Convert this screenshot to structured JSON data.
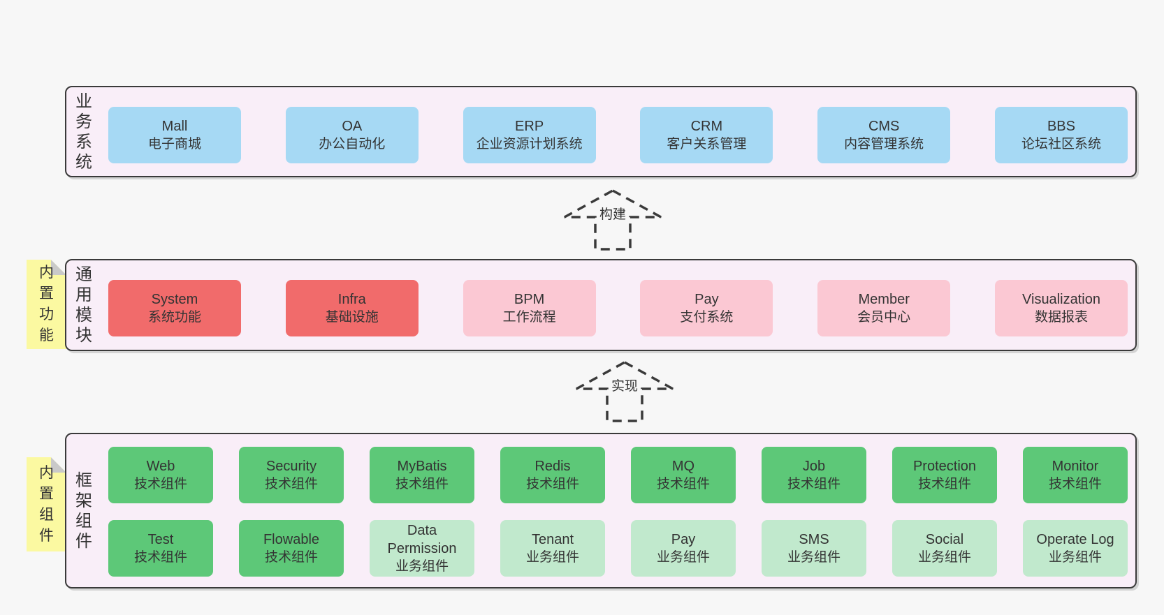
{
  "palette": {
    "page_bg": "#f7f7f7",
    "panel_bg": "#f9eef8",
    "panel_border": "#3a3a3a",
    "text": "#333333",
    "note_bg": "#fbf9a1",
    "note_fold": "#c9c9c9",
    "blue": "#a6d9f4",
    "red": "#f16b6b",
    "pink": "#fbc8d3",
    "green": "#5dc878",
    "lightgreen": "#c1e9cd"
  },
  "arrows": [
    {
      "label": "构建"
    },
    {
      "label": "实现"
    }
  ],
  "sections": {
    "business": {
      "label": "业务系统",
      "boxes": [
        {
          "en": "Mall",
          "zh": "电子商城",
          "type": "blue"
        },
        {
          "en": "OA",
          "zh": "办公自动化",
          "type": "blue"
        },
        {
          "en": "ERP",
          "zh": "企业资源计划系统",
          "type": "blue"
        },
        {
          "en": "CRM",
          "zh": "客户关系管理",
          "type": "blue"
        },
        {
          "en": "CMS",
          "zh": "内容管理系统",
          "type": "blue"
        },
        {
          "en": "BBS",
          "zh": "论坛社区系统",
          "type": "blue"
        }
      ]
    },
    "modules": {
      "tag": "内置功能",
      "label": "通用模块",
      "boxes": [
        {
          "en": "System",
          "zh": "系统功能",
          "type": "red"
        },
        {
          "en": "Infra",
          "zh": "基础设施",
          "type": "red"
        },
        {
          "en": "BPM",
          "zh": "工作流程",
          "type": "pink"
        },
        {
          "en": "Pay",
          "zh": "支付系统",
          "type": "pink"
        },
        {
          "en": "Member",
          "zh": "会员中心",
          "type": "pink"
        },
        {
          "en": "Visualization",
          "zh": "数据报表",
          "type": "pink"
        }
      ]
    },
    "framework": {
      "tag": "内置组件",
      "label": "框架组件",
      "row1": [
        {
          "en": "Web",
          "zh": "技术组件",
          "type": "green"
        },
        {
          "en": "Security",
          "zh": "技术组件",
          "type": "green"
        },
        {
          "en": "MyBatis",
          "zh": "技术组件",
          "type": "green"
        },
        {
          "en": "Redis",
          "zh": "技术组件",
          "type": "green"
        },
        {
          "en": "MQ",
          "zh": "技术组件",
          "type": "green"
        },
        {
          "en": "Job",
          "zh": "技术组件",
          "type": "green"
        },
        {
          "en": "Protection",
          "zh": "技术组件",
          "type": "green"
        },
        {
          "en": "Monitor",
          "zh": "技术组件",
          "type": "green"
        }
      ],
      "row2": [
        {
          "en": "Test",
          "zh": "技术组件",
          "type": "green"
        },
        {
          "en": "Flowable",
          "zh": "技术组件",
          "type": "green"
        },
        {
          "en": "Data Permission",
          "zh": "业务组件",
          "type": "lightgreen"
        },
        {
          "en": "Tenant",
          "zh": "业务组件",
          "type": "lightgreen"
        },
        {
          "en": "Pay",
          "zh": "业务组件",
          "type": "lightgreen"
        },
        {
          "en": "SMS",
          "zh": "业务组件",
          "type": "lightgreen"
        },
        {
          "en": "Social",
          "zh": "业务组件",
          "type": "lightgreen"
        },
        {
          "en": "Operate Log",
          "zh": "业务组件",
          "type": "lightgreen"
        }
      ]
    }
  }
}
